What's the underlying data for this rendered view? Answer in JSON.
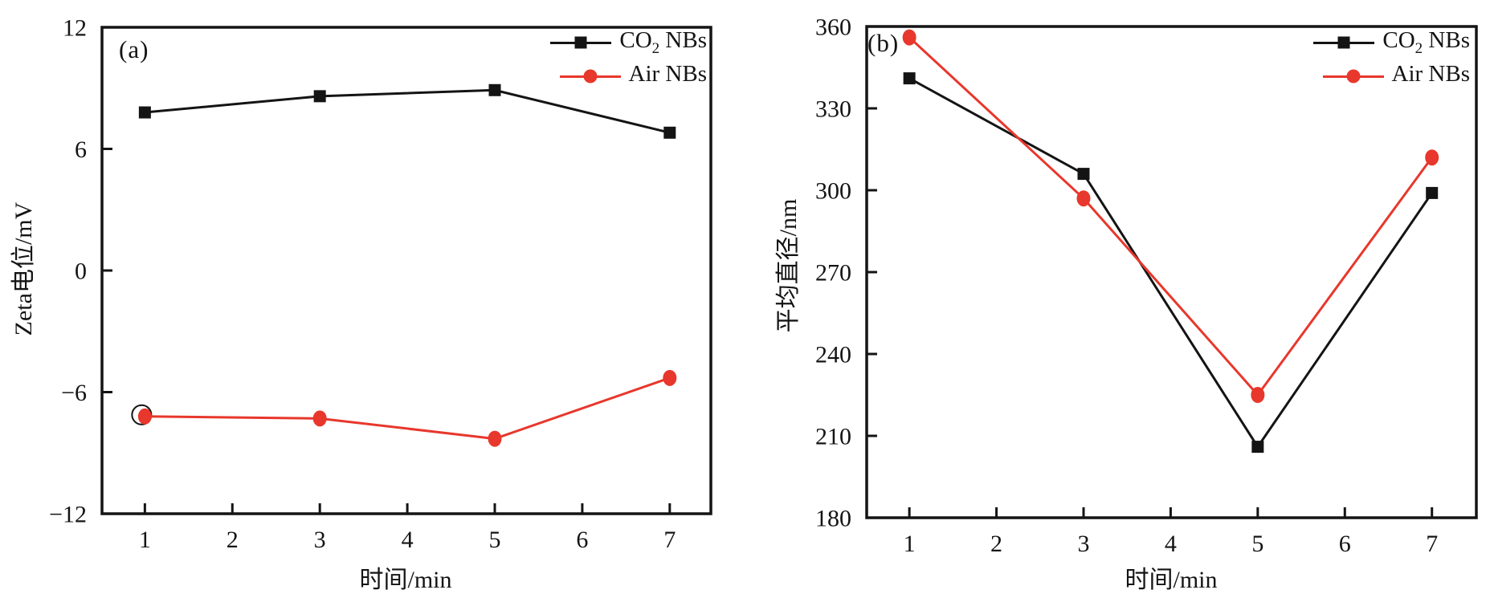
{
  "figure": {
    "background": "#ffffff",
    "description": "Two-panel line chart figure comparing CO2 nanobubbles and Air nanobubbles over time"
  },
  "colors": {
    "axis": "#141414",
    "co2_series": "#141414",
    "air_series": "#e8372c"
  },
  "chart_data": [
    {
      "type": "line",
      "panel_label": "(a)",
      "xlabel": "时间/min",
      "ylabel": "Zeta电位/mV",
      "x": [
        1,
        3,
        5,
        7
      ],
      "series": [
        {
          "name": "CO2 NBs",
          "key": "co2-nbs",
          "color": "#141414",
          "marker": "square",
          "values": [
            7.8,
            8.6,
            8.9,
            6.8
          ]
        },
        {
          "name": "Air NBs",
          "key": "air-nbs",
          "color": "#e8372c",
          "marker": "circle",
          "values": [
            -7.2,
            -7.3,
            -8.3,
            -5.3
          ]
        }
      ],
      "xlim": [
        0.51,
        7.47
      ],
      "ylim": [
        -12,
        12
      ],
      "xticks": [
        1,
        2,
        3,
        4,
        5,
        6,
        7
      ],
      "xtick_labels": [
        "1",
        "2",
        "3",
        "4",
        "5",
        "6",
        "7"
      ],
      "yticks": [
        -12,
        -6,
        0,
        6,
        12
      ],
      "ytick_labels": [
        "−12",
        "−6",
        "0",
        "6",
        "12"
      ],
      "grid": false,
      "legend_position": "top-right-inside",
      "legend": [
        {
          "pre": "CO",
          "sub": "2",
          "post": " NBs"
        },
        {
          "pre": "Air NBs",
          "sub": "",
          "post": ""
        }
      ],
      "annotations": [
        {
          "type": "open-circle",
          "x": 1,
          "y": -7.2,
          "dx": -4,
          "dy": -2,
          "r": 12,
          "note": "unfilled circle marker behind first Air NBs point"
        }
      ],
      "axis_color": "#141414"
    },
    {
      "type": "line",
      "panel_label": "(b)",
      "xlabel": "时间/min",
      "ylabel": "平均直径/nm",
      "x": [
        1,
        3,
        5,
        7
      ],
      "series": [
        {
          "name": "CO2 NBs",
          "key": "co2-nbs",
          "color": "#141414",
          "marker": "square",
          "values": [
            341,
            306,
            206,
            299
          ]
        },
        {
          "name": "Air NBs",
          "key": "air-nbs",
          "color": "#e8372c",
          "marker": "circle",
          "values": [
            356,
            297,
            225,
            312
          ]
        }
      ],
      "xlim": [
        0.51,
        7.51
      ],
      "ylim": [
        180,
        360
      ],
      "xticks": [
        1,
        2,
        3,
        4,
        5,
        6,
        7
      ],
      "xtick_labels": [
        "1",
        "2",
        "3",
        "4",
        "5",
        "6",
        "7"
      ],
      "yticks": [
        180,
        210,
        240,
        270,
        300,
        330,
        360
      ],
      "ytick_labels": [
        "180",
        "210",
        "240",
        "270",
        "300",
        "330",
        "360"
      ],
      "grid": false,
      "legend_position": "top-right-inside",
      "legend": [
        {
          "pre": "CO",
          "sub": "2",
          "post": " NBs"
        },
        {
          "pre": "Air NBs",
          "sub": "",
          "post": ""
        }
      ],
      "annotations": [],
      "axis_color": "#141414"
    }
  ]
}
